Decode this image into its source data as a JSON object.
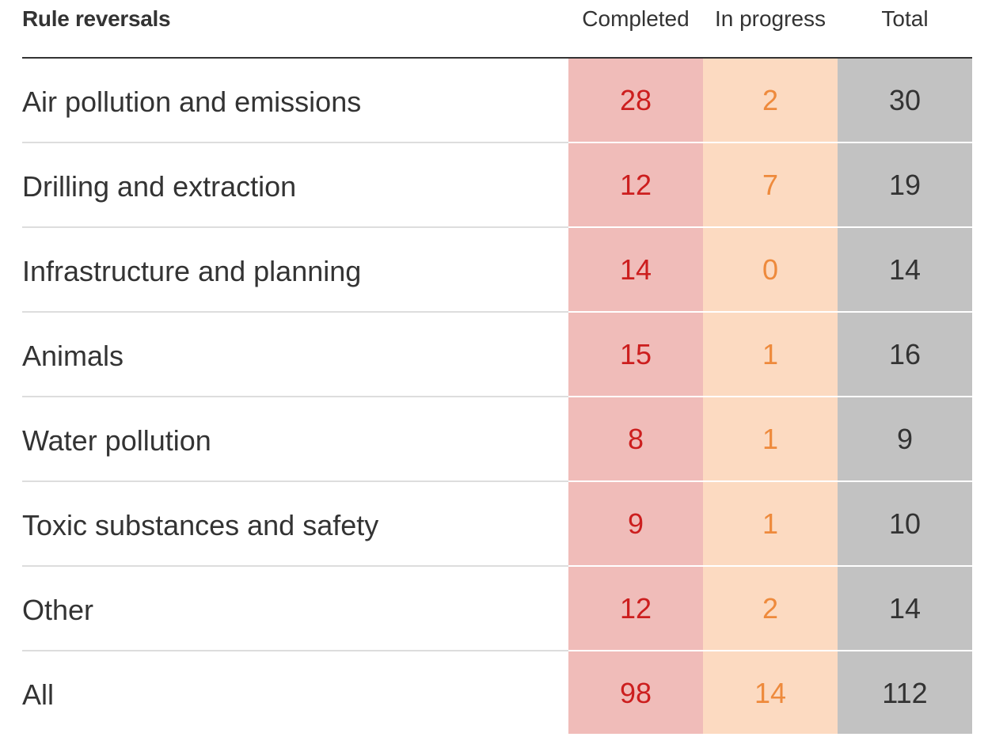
{
  "header": {
    "title": "Rule reversals",
    "col_completed": "Completed",
    "col_in_progress": "In progress",
    "col_total": "Total"
  },
  "colors": {
    "completed_bg": "#f0bcb9",
    "completed_text": "#cc1e1e",
    "in_progress_bg": "#fcdac1",
    "in_progress_text": "#ee8a3c",
    "total_bg": "#c2c2c2",
    "total_text": "#333333"
  },
  "chart_data": {
    "type": "table",
    "title": "Rule reversals",
    "columns": [
      "Completed",
      "In progress",
      "Total"
    ],
    "rows": [
      {
        "label": "Air pollution and emissions",
        "completed": "28",
        "in_progress": "2",
        "total": "30"
      },
      {
        "label": "Drilling and extraction",
        "completed": "12",
        "in_progress": "7",
        "total": "19"
      },
      {
        "label": "Infrastructure and planning",
        "completed": "14",
        "in_progress": "0",
        "total": "14"
      },
      {
        "label": "Animals",
        "completed": "15",
        "in_progress": "1",
        "total": "16"
      },
      {
        "label": "Water pollution",
        "completed": "8",
        "in_progress": "1",
        "total": "9"
      },
      {
        "label": "Toxic substances and safety",
        "completed": "9",
        "in_progress": "1",
        "total": "10"
      },
      {
        "label": "Other",
        "completed": "12",
        "in_progress": "2",
        "total": "14"
      },
      {
        "label": "All",
        "completed": "98",
        "in_progress": "14",
        "total": "112"
      }
    ]
  }
}
